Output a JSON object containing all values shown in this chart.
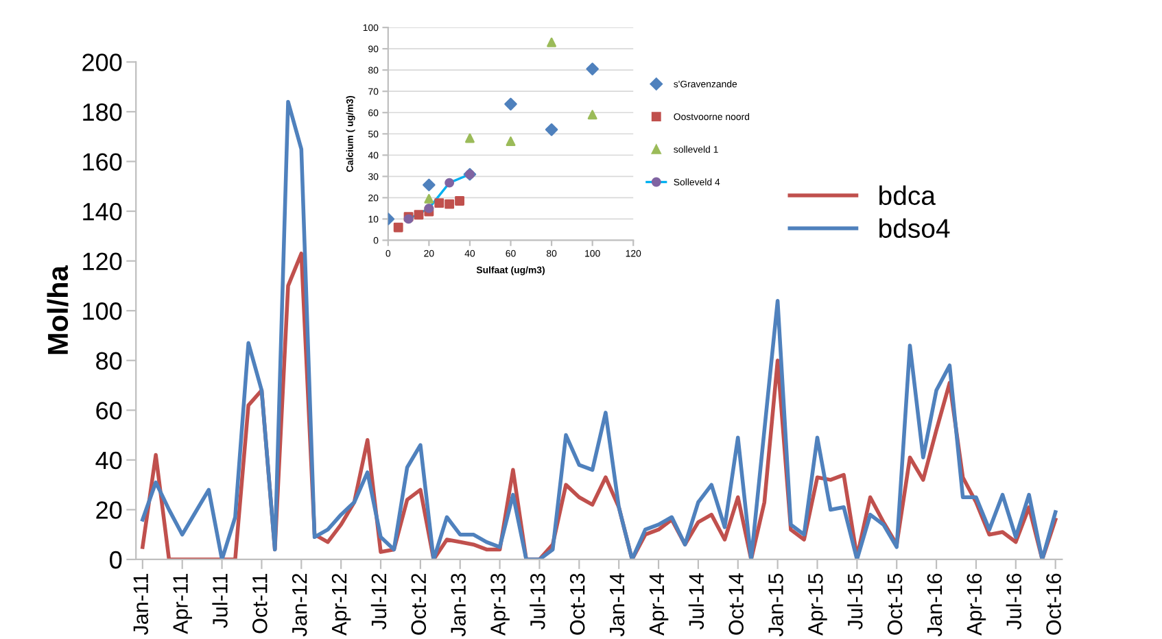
{
  "chart_data": [
    {
      "type": "line",
      "ylabel": "Mol/ha",
      "categories": [
        "Jan-11",
        null,
        null,
        "Apr-11",
        null,
        null,
        "Jul-11",
        null,
        null,
        "Oct-11",
        null,
        null,
        "Jan-12",
        null,
        null,
        "Apr-12",
        null,
        null,
        "Jul-12",
        null,
        null,
        "Oct-12",
        null,
        null,
        "Jan-13",
        null,
        null,
        "Apr-13",
        null,
        null,
        "Jul-13",
        null,
        null,
        "Oct-13",
        null,
        null,
        "Jan-14",
        null,
        null,
        "Apr-14",
        null,
        null,
        "Jul-14",
        null,
        null,
        "Oct-14",
        null,
        null,
        "Jan-15",
        null,
        null,
        "Apr-15",
        null,
        null,
        "Jul-15",
        null,
        null,
        "Oct-15",
        null,
        null,
        "Jan-16",
        null,
        null,
        "Apr-16",
        null,
        null,
        "Jul-16",
        null,
        null,
        "Oct-16"
      ],
      "series": [
        {
          "name": "bdca",
          "color": "#c0504d",
          "values": [
            5,
            42,
            0,
            0,
            0,
            0,
            0,
            0,
            62,
            68,
            4,
            110,
            123,
            10,
            7,
            14,
            23,
            48,
            3,
            4,
            24,
            28,
            0,
            8,
            7,
            6,
            4,
            4,
            36,
            0,
            0,
            6,
            30,
            25,
            22,
            33,
            21,
            0,
            10,
            12,
            16,
            6,
            15,
            18,
            8,
            25,
            0,
            23,
            80,
            12,
            8,
            33,
            32,
            34,
            1,
            25,
            15,
            6,
            41,
            32,
            52,
            71,
            33,
            23,
            10,
            11,
            7,
            21,
            0,
            16
          ]
        },
        {
          "name": "bdso4",
          "color": "#4f81bd",
          "values": [
            16,
            31,
            20,
            10,
            19,
            28,
            0,
            17,
            87,
            68,
            4,
            184,
            165,
            9,
            12,
            18,
            23,
            35,
            9,
            4,
            37,
            46,
            0,
            17,
            10,
            10,
            7,
            5,
            26,
            0,
            0,
            4,
            50,
            38,
            36,
            59,
            21,
            0,
            12,
            14,
            17,
            6,
            23,
            30,
            13,
            49,
            0,
            52,
            104,
            14,
            10,
            49,
            20,
            21,
            0,
            18,
            14,
            5,
            86,
            41,
            68,
            78,
            25,
            25,
            12,
            26,
            9,
            26,
            0,
            19
          ]
        }
      ],
      "ylim": [
        0,
        200
      ],
      "yticks": [
        0,
        20,
        40,
        60,
        80,
        100,
        120,
        140,
        160,
        180,
        200
      ],
      "grid": false,
      "legend": "right",
      "marker": "none",
      "line_style": "solid"
    },
    {
      "type": "scatter",
      "xlabel": "Sulfaat (ug/m3)",
      "ylabel": "Calcium ( ug/m3)",
      "series": [
        {
          "name": "s'Gravenzande",
          "color": "#4f81bd",
          "marker": "diamond",
          "x": [
            0,
            10,
            20,
            40,
            60,
            80,
            100
          ],
          "values": [
            10,
            null,
            26,
            31,
            64,
            52,
            80.5
          ]
        },
        {
          "name": "Oostvoorne noord",
          "color": "#c0504d",
          "marker": "square",
          "x": [
            5,
            10,
            15,
            20,
            25,
            30,
            35
          ],
          "values": [
            6,
            11,
            12,
            13.5,
            17.5,
            17,
            18.5
          ]
        },
        {
          "name": "solleveld 1",
          "color": "#9bbb59",
          "marker": "triangle",
          "x": [
            20,
            40,
            60,
            80,
            100
          ],
          "values": [
            19.5,
            48,
            46.5,
            93,
            59
          ]
        },
        {
          "name": "Solleveld 4",
          "type": "line",
          "color": "#00b0f0",
          "colors": [
            "#8064a2",
            "#8064a2",
            "#8064a2",
            "#8064a2"
          ],
          "marker": "circle",
          "x": [
            10,
            20,
            30,
            40
          ],
          "values": [
            10,
            15,
            27,
            31
          ]
        }
      ],
      "xlim": [
        0,
        120
      ],
      "xticks": [
        0,
        20,
        40,
        60,
        80,
        100,
        120
      ],
      "ylim": [
        0,
        100
      ],
      "yticks": [
        0,
        10,
        20,
        30,
        40,
        50,
        60,
        70,
        80,
        90,
        100
      ],
      "grid": "y",
      "legend": "right"
    }
  ]
}
